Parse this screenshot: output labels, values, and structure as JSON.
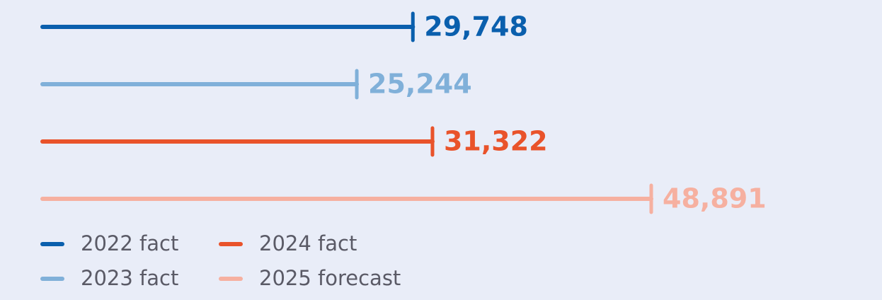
{
  "chart_data": {
    "type": "bar",
    "series": [
      {
        "name": "2022 fact",
        "color": "#0a5fad",
        "values": [
          29748
        ],
        "value_labels": [
          "29,748"
        ]
      },
      {
        "name": "2023 fact",
        "color": "#80b0d9",
        "values": [
          25244
        ],
        "value_labels": [
          "25,244"
        ]
      },
      {
        "name": "2024 fact",
        "color": "#e9532b",
        "values": [
          31322
        ],
        "value_labels": [
          "31,322"
        ]
      },
      {
        "name": "2025 forecast",
        "color": "#f6b0a0",
        "values": [
          48891
        ],
        "value_labels": [
          "48,891"
        ]
      }
    ]
  }
}
